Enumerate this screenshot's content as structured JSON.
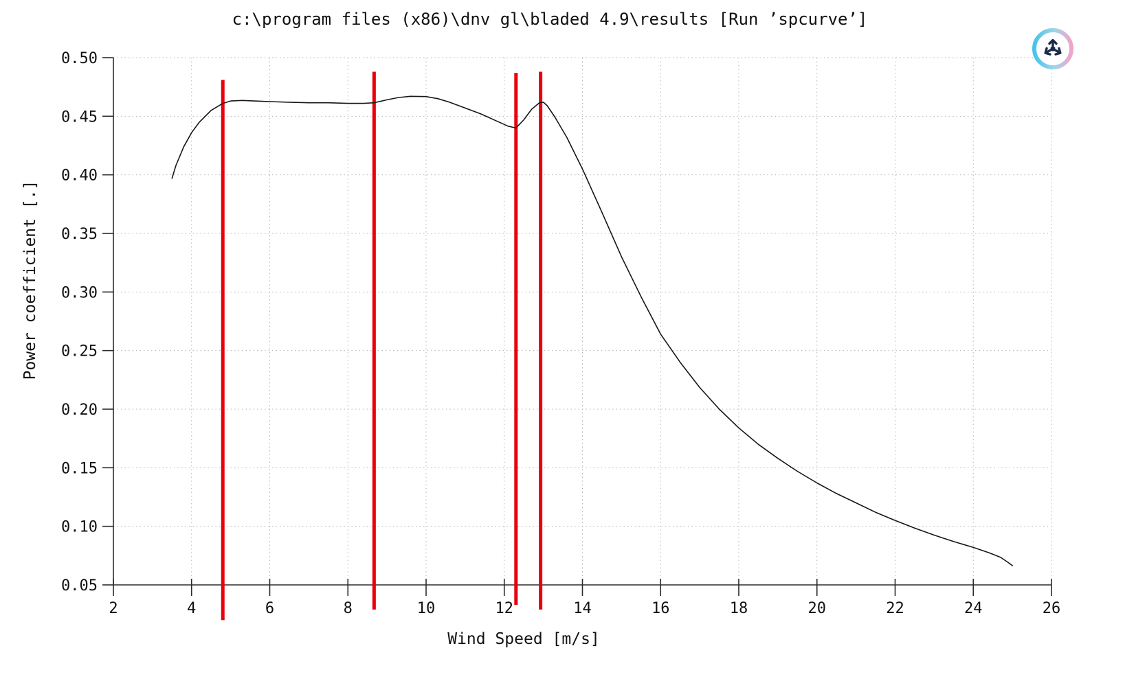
{
  "accent_colors": {
    "curve": "#161616",
    "marker_line": "#e8000b",
    "grid": "#b4b4b4",
    "logo_ring_left": "#49c3e8",
    "logo_ring_right": "#f2a3cb",
    "logo_glyph": "#1b2a4a"
  },
  "logo": {
    "name": "bladed-rotor-logo"
  },
  "chart_data": {
    "type": "line",
    "title": "c:\\program files (x86)\\dnv gl\\bladed 4.9\\results  [Run ’spcurve’]",
    "xlabel": "Wind Speed [m/s]",
    "ylabel": "Power coefficient  [.]",
    "xlim": [
      2,
      26
    ],
    "ylim": [
      0.05,
      0.5
    ],
    "xticks": [
      2,
      4,
      6,
      8,
      10,
      12,
      14,
      16,
      18,
      20,
      22,
      24,
      26
    ],
    "xtick_labels": [
      "2",
      "4",
      "6",
      "8",
      "10",
      "12",
      "14",
      "16",
      "18",
      "20",
      "22",
      "24",
      "26"
    ],
    "yticks": [
      0.05,
      0.1,
      0.15,
      0.2,
      0.25,
      0.3,
      0.35,
      0.4,
      0.45,
      0.5
    ],
    "ytick_labels": [
      "0.05",
      "0.10",
      "0.15",
      "0.20",
      "0.25",
      "0.30",
      "0.35",
      "0.40",
      "0.45",
      "0.50"
    ],
    "grid": "dotted",
    "legend": "none",
    "series": [
      {
        "name": "Power coefficient vs Wind Speed",
        "color": "#161616",
        "points": [
          [
            3.5,
            0.397
          ],
          [
            3.6,
            0.408
          ],
          [
            3.8,
            0.424
          ],
          [
            4.0,
            0.436
          ],
          [
            4.2,
            0.445
          ],
          [
            4.5,
            0.455
          ],
          [
            4.8,
            0.461
          ],
          [
            5.0,
            0.463
          ],
          [
            5.3,
            0.4635
          ],
          [
            5.6,
            0.463
          ],
          [
            6.0,
            0.4625
          ],
          [
            6.5,
            0.462
          ],
          [
            7.0,
            0.4615
          ],
          [
            7.5,
            0.4615
          ],
          [
            8.0,
            0.461
          ],
          [
            8.4,
            0.461
          ],
          [
            8.67,
            0.4615
          ],
          [
            9.0,
            0.464
          ],
          [
            9.3,
            0.466
          ],
          [
            9.6,
            0.467
          ],
          [
            10.0,
            0.4668
          ],
          [
            10.3,
            0.465
          ],
          [
            10.6,
            0.462
          ],
          [
            11.0,
            0.457
          ],
          [
            11.4,
            0.452
          ],
          [
            11.8,
            0.446
          ],
          [
            12.1,
            0.4415
          ],
          [
            12.3,
            0.44
          ],
          [
            12.5,
            0.447
          ],
          [
            12.7,
            0.456
          ],
          [
            12.9,
            0.4615
          ],
          [
            13.0,
            0.462
          ],
          [
            13.1,
            0.459
          ],
          [
            13.3,
            0.449
          ],
          [
            13.6,
            0.432
          ],
          [
            14.0,
            0.405
          ],
          [
            14.5,
            0.368
          ],
          [
            15.0,
            0.33
          ],
          [
            15.5,
            0.296
          ],
          [
            16.0,
            0.264
          ],
          [
            16.5,
            0.24
          ],
          [
            17.0,
            0.2185
          ],
          [
            17.5,
            0.2
          ],
          [
            18.0,
            0.184
          ],
          [
            18.5,
            0.17
          ],
          [
            19.0,
            0.158
          ],
          [
            19.5,
            0.147
          ],
          [
            20.0,
            0.137
          ],
          [
            20.5,
            0.128
          ],
          [
            21.0,
            0.12
          ],
          [
            21.5,
            0.112
          ],
          [
            22.0,
            0.105
          ],
          [
            22.5,
            0.0985
          ],
          [
            23.0,
            0.0925
          ],
          [
            23.5,
            0.087
          ],
          [
            24.0,
            0.082
          ],
          [
            24.4,
            0.0775
          ],
          [
            24.7,
            0.0735
          ],
          [
            24.9,
            0.069
          ],
          [
            25.0,
            0.0665
          ]
        ]
      }
    ],
    "marker_lines": {
      "color": "#e8000b",
      "lines": [
        {
          "x": 4.8,
          "top": 0.481,
          "bottom": 0.02
        },
        {
          "x": 8.67,
          "top": 0.488,
          "bottom": 0.029
        },
        {
          "x": 12.3,
          "top": 0.487,
          "bottom": 0.033
        },
        {
          "x": 12.93,
          "top": 0.488,
          "bottom": 0.029
        }
      ]
    }
  }
}
